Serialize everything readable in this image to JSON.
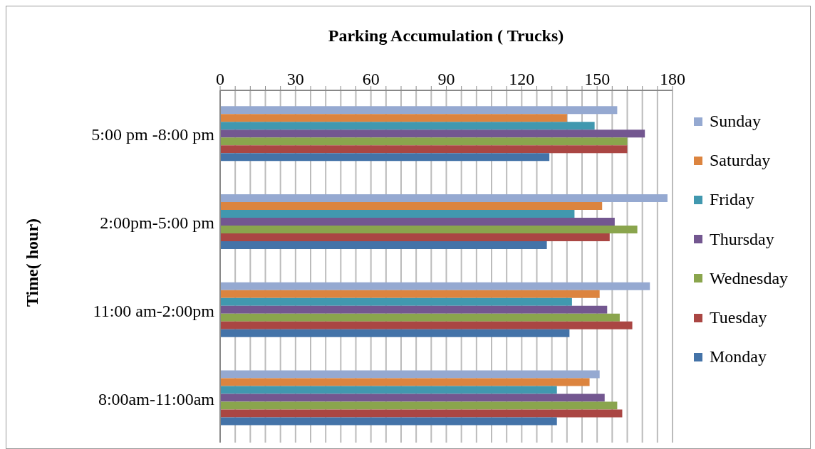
{
  "chart_data": {
    "type": "bar",
    "orientation": "horizontal",
    "xlabel": "Parking Accumulation ( Trucks)",
    "ylabel": "Time( hour)",
    "categories": [
      "5:00 pm -8:00 pm",
      "2:00pm-5:00 pm",
      "11:00 am-2:00pm",
      "8:00am-11:00am"
    ],
    "series": [
      {
        "name": "Sunday",
        "color": "#95a9d1",
        "values": [
          158,
          178,
          171,
          151
        ]
      },
      {
        "name": "Saturday",
        "color": "#dc843f",
        "values": [
          138,
          152,
          151,
          147
        ]
      },
      {
        "name": "Friday",
        "color": "#4198af",
        "values": [
          149,
          141,
          140,
          134
        ]
      },
      {
        "name": "Thursday",
        "color": "#735790",
        "values": [
          169,
          157,
          154,
          153
        ]
      },
      {
        "name": "Wednesday",
        "color": "#8aa54d",
        "values": [
          162,
          166,
          159,
          158
        ]
      },
      {
        "name": "Tuesday",
        "color": "#aa4643",
        "values": [
          162,
          155,
          164,
          160
        ]
      },
      {
        "name": "Monday",
        "color": "#4473a8",
        "values": [
          131,
          130,
          139,
          134
        ]
      }
    ],
    "xlim": [
      0,
      180
    ],
    "xticks": [
      0,
      {
        "value": 6,
        "label": null
      },
      {
        "value": 12,
        "label": null
      },
      {
        "value": 18,
        "label": null
      },
      {
        "value": 24,
        "label": null
      },
      30,
      {
        "value": 36,
        "label": null
      },
      {
        "value": 42,
        "label": null
      },
      {
        "value": 48,
        "label": null
      },
      {
        "value": 54,
        "label": null
      },
      60,
      {
        "value": 66,
        "label": null
      },
      {
        "value": 72,
        "label": null
      },
      {
        "value": 78,
        "label": null
      },
      {
        "value": 84,
        "label": null
      },
      90,
      {
        "value": 96,
        "label": null
      },
      {
        "value": 102,
        "label": null
      },
      {
        "value": 108,
        "label": null
      },
      {
        "value": 114,
        "label": null
      },
      120,
      {
        "value": 126,
        "label": null
      },
      {
        "value": 132,
        "label": null
      },
      {
        "value": 138,
        "label": null
      },
      {
        "value": 144,
        "label": null
      },
      150,
      {
        "value": 156,
        "label": null
      },
      {
        "value": 162,
        "label": null
      },
      {
        "value": 168,
        "label": null
      },
      {
        "value": 174,
        "label": null
      },
      180
    ],
    "grid": "x",
    "legend": "right"
  }
}
